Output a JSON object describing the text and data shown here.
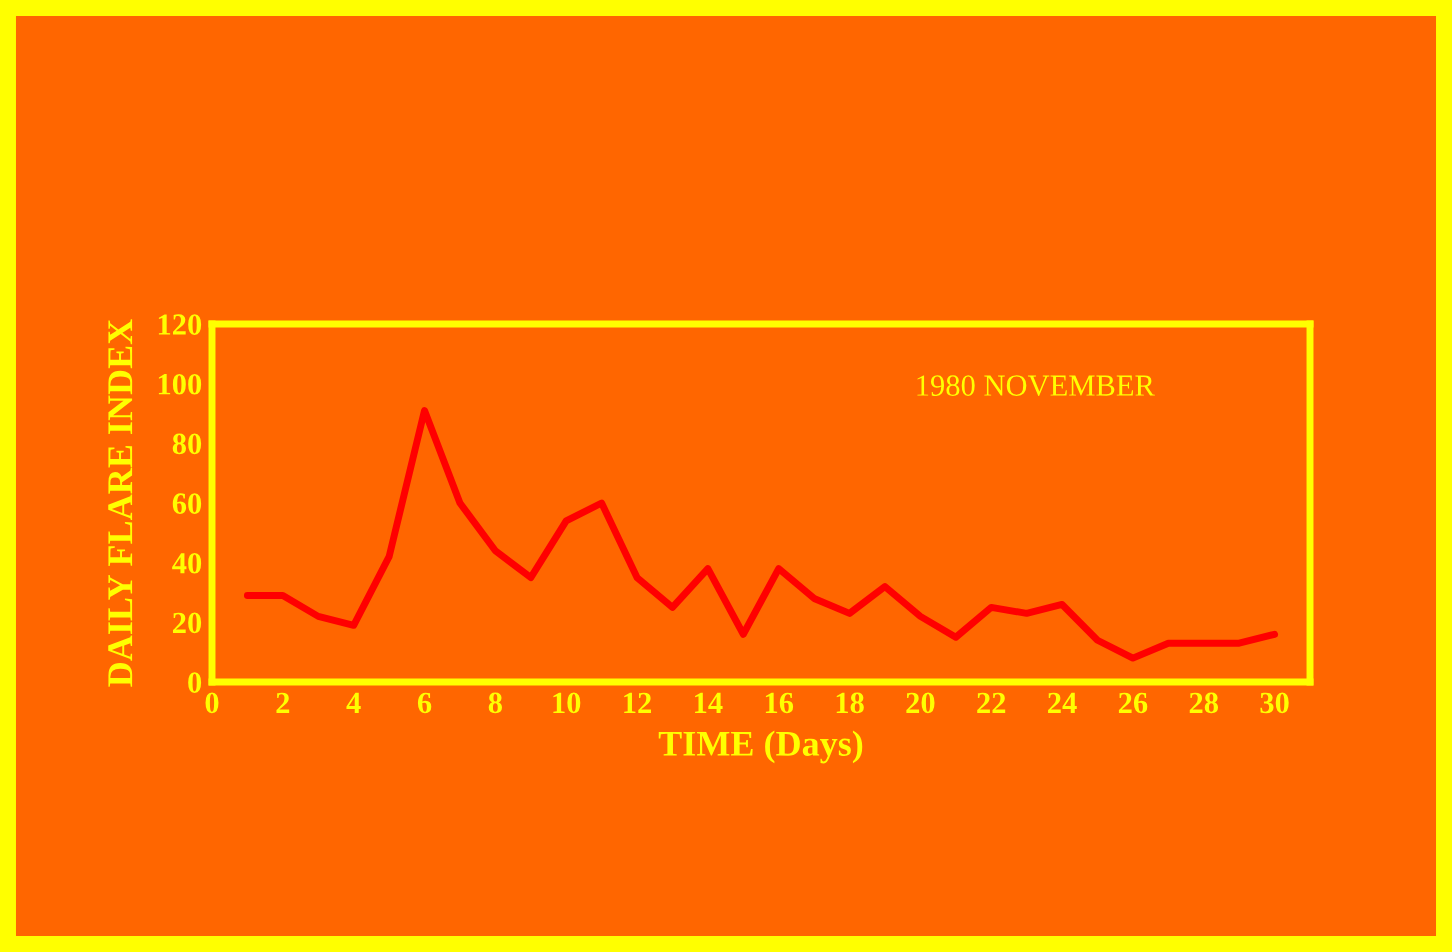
{
  "chart_data": {
    "type": "line",
    "xlabel": "TIME (Days)",
    "ylabel": "DAILY FLARE INDEX",
    "annotations": [
      "1980 NOVEMBER"
    ],
    "x": [
      1,
      2,
      3,
      4,
      5,
      6,
      7,
      8,
      9,
      10,
      11,
      12,
      13,
      14,
      15,
      16,
      17,
      18,
      19,
      20,
      21,
      22,
      23,
      24,
      25,
      26,
      27,
      28,
      29,
      30
    ],
    "series": [
      {
        "color": "#ff0000",
        "values": [
          29,
          29,
          22,
          19,
          42,
          91,
          60,
          44,
          35,
          54,
          60,
          35,
          25,
          38,
          16,
          38,
          28,
          23,
          32,
          22,
          15,
          25,
          23,
          26,
          14,
          8,
          13,
          13,
          13,
          16
        ]
      }
    ],
    "xlim": [
      0,
      31
    ],
    "xticks": [
      0,
      2,
      4,
      6,
      8,
      10,
      12,
      14,
      16,
      18,
      20,
      22,
      24,
      26,
      28,
      30
    ],
    "ylim": [
      0,
      120
    ],
    "yticks": [
      0,
      20,
      40,
      60,
      80,
      100,
      120
    ],
    "grid": false,
    "marker": "none",
    "line_style": "solid"
  }
}
